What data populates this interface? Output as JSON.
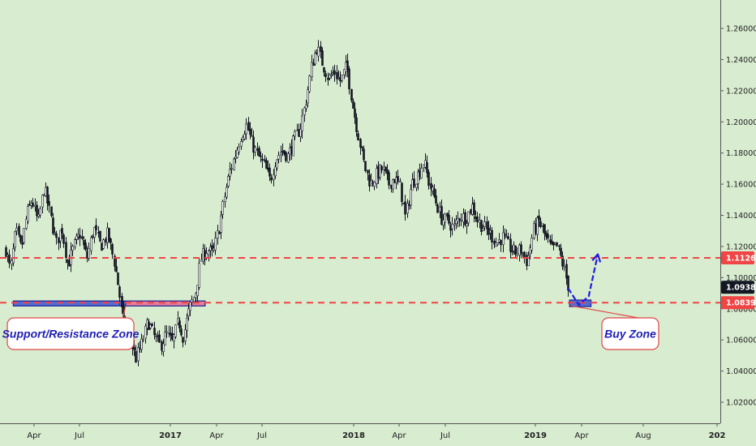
{
  "chart_data": {
    "type": "candlestick",
    "title": "",
    "y_ticks": [
      "1.26000",
      "1.24000",
      "1.22000",
      "1.20000",
      "1.18000",
      "1.16000",
      "1.14000",
      "1.12000",
      "1.10000",
      "1.08000",
      "1.06000",
      "1.04000",
      "1.02000"
    ],
    "x_ticks": [
      {
        "label": "Apr",
        "bold": false
      },
      {
        "label": "Jul",
        "bold": false
      },
      {
        "label": "2017",
        "bold": true
      },
      {
        "label": "Apr",
        "bold": false
      },
      {
        "label": "Jul",
        "bold": false
      },
      {
        "label": "2018",
        "bold": true
      },
      {
        "label": "Apr",
        "bold": false
      },
      {
        "label": "Jul",
        "bold": false
      },
      {
        "label": "2019",
        "bold": true
      },
      {
        "label": "Apr",
        "bold": false
      },
      {
        "label": "Aug",
        "bold": false
      },
      {
        "label": "202",
        "bold": true
      }
    ],
    "ylim": [
      1.0062,
      1.2719
    ],
    "grid": false,
    "close_path": [
      [
        0.0,
        1.118
      ],
      [
        0.6,
        1.104
      ],
      [
        1.3,
        1.13
      ],
      [
        2.0,
        1.118
      ],
      [
        2.7,
        1.14
      ],
      [
        3.4,
        1.15
      ],
      [
        4.2,
        1.135
      ],
      [
        5.0,
        1.158
      ],
      [
        5.8,
        1.14
      ],
      [
        6.6,
        1.122
      ],
      [
        7.3,
        1.132
      ],
      [
        8.1,
        1.108
      ],
      [
        8.9,
        1.12
      ],
      [
        9.7,
        1.128
      ],
      [
        10.6,
        1.112
      ],
      [
        11.5,
        1.132
      ],
      [
        12.4,
        1.12
      ],
      [
        13.3,
        1.128
      ],
      [
        14.2,
        1.11
      ],
      [
        14.8,
        1.092
      ],
      [
        15.4,
        1.068
      ],
      [
        16.2,
        1.062
      ],
      [
        17.0,
        1.048
      ],
      [
        17.8,
        1.058
      ],
      [
        18.6,
        1.072
      ],
      [
        19.4,
        1.062
      ],
      [
        20.2,
        1.056
      ],
      [
        21.0,
        1.064
      ],
      [
        21.8,
        1.058
      ],
      [
        22.6,
        1.072
      ],
      [
        23.2,
        1.062
      ],
      [
        24.0,
        1.08
      ],
      [
        24.8,
        1.09
      ],
      [
        25.5,
        1.112
      ],
      [
        26.3,
        1.118
      ],
      [
        27.1,
        1.115
      ],
      [
        27.9,
        1.132
      ],
      [
        28.6,
        1.152
      ],
      [
        29.3,
        1.168
      ],
      [
        30.1,
        1.18
      ],
      [
        30.8,
        1.192
      ],
      [
        31.5,
        1.198
      ],
      [
        32.2,
        1.186
      ],
      [
        33.0,
        1.178
      ],
      [
        33.8,
        1.172
      ],
      [
        34.6,
        1.162
      ],
      [
        35.3,
        1.176
      ],
      [
        36.1,
        1.182
      ],
      [
        36.9,
        1.178
      ],
      [
        37.7,
        1.188
      ],
      [
        38.5,
        1.196
      ],
      [
        39.2,
        1.212
      ],
      [
        40.0,
        1.236
      ],
      [
        40.7,
        1.248
      ],
      [
        41.4,
        1.238
      ],
      [
        42.2,
        1.228
      ],
      [
        43.0,
        1.232
      ],
      [
        43.8,
        1.226
      ],
      [
        44.6,
        1.236
      ],
      [
        45.4,
        1.21
      ],
      [
        46.1,
        1.192
      ],
      [
        46.9,
        1.172
      ],
      [
        47.7,
        1.16
      ],
      [
        48.5,
        1.166
      ],
      [
        49.3,
        1.17
      ],
      [
        50.1,
        1.16
      ],
      [
        50.8,
        1.164
      ],
      [
        51.6,
        1.158
      ],
      [
        52.3,
        1.138
      ],
      [
        53.1,
        1.16
      ],
      [
        53.9,
        1.166
      ],
      [
        54.7,
        1.175
      ],
      [
        55.4,
        1.16
      ],
      [
        56.2,
        1.15
      ],
      [
        57.0,
        1.138
      ],
      [
        57.8,
        1.136
      ],
      [
        58.6,
        1.132
      ],
      [
        59.4,
        1.14
      ],
      [
        60.2,
        1.138
      ],
      [
        61.0,
        1.146
      ],
      [
        61.8,
        1.136
      ],
      [
        62.6,
        1.132
      ],
      [
        63.4,
        1.128
      ],
      [
        64.2,
        1.122
      ],
      [
        65.0,
        1.126
      ],
      [
        65.8,
        1.12
      ],
      [
        66.6,
        1.116
      ],
      [
        67.4,
        1.118
      ],
      [
        68.2,
        1.11
      ],
      [
        69.0,
        1.13
      ],
      [
        69.8,
        1.136
      ],
      [
        70.6,
        1.126
      ],
      [
        71.4,
        1.118
      ],
      [
        72.2,
        1.12
      ],
      [
        72.9,
        1.108
      ],
      [
        73.6,
        1.094
      ]
    ],
    "levels": [
      {
        "label": "1.11264",
        "value": 1.11264,
        "color": "#f04545",
        "style": "dashed"
      },
      {
        "label": "1.08391",
        "value": 1.08391,
        "color": "#f04545",
        "style": "dashed"
      }
    ],
    "current_price": {
      "label": "1.09381",
      "value": 1.09381,
      "color": "#131722"
    },
    "zones": [
      {
        "x_start": 1.0,
        "x_end": 15.7,
        "value_top": 1.085,
        "value_bottom": 1.0818,
        "color": "#3a57d6",
        "border": "#1d1d99"
      },
      {
        "x_start": 15.7,
        "x_end": 26.1,
        "value_top": 1.085,
        "value_bottom": 1.0818,
        "color": "#e86a8e",
        "border": "#1d1d99"
      },
      {
        "x_start": 73.8,
        "x_end": 76.6,
        "value_top": 1.0856,
        "value_bottom": 1.0814,
        "color": "#3a57d6",
        "border": "#1d1d99"
      }
    ],
    "projection": [
      [
        73.6,
        1.0932
      ],
      [
        75.0,
        1.0825
      ],
      [
        76.3,
        1.088
      ],
      [
        77.5,
        1.115
      ]
    ],
    "annotations": [
      {
        "text": "Support/Resistance Zone",
        "anchor_x": 15.7,
        "anchor_value": 1.082
      },
      {
        "text": "Buy Zone",
        "anchor_x": 73.9,
        "anchor_value": 1.082
      }
    ]
  }
}
